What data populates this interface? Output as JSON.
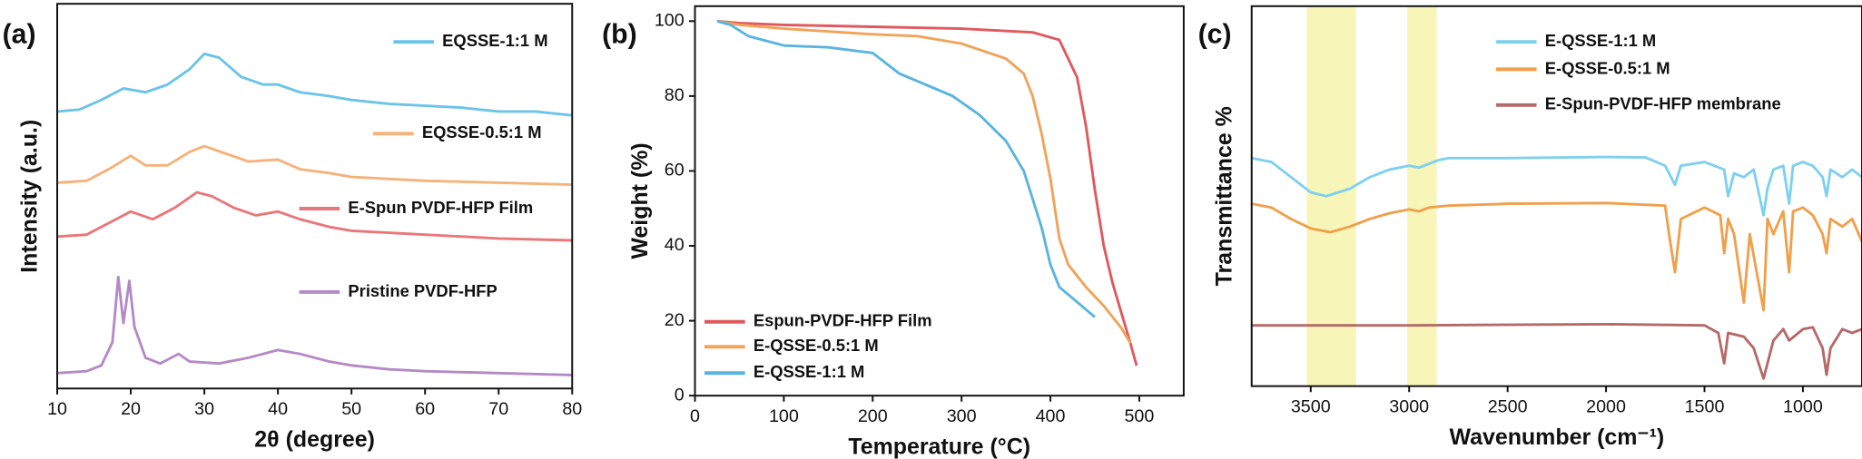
{
  "chart_data": [
    {
      "type": "line",
      "panel_label": "(a)",
      "x_label": "2θ (degree)",
      "y_label": "Intensity (a.u.)",
      "xlim": [
        10,
        80
      ],
      "xticks": [
        10,
        20,
        30,
        40,
        50,
        60,
        70,
        80
      ],
      "ylim": [
        0,
        100
      ],
      "legend": "inline",
      "series": [
        {
          "name": "EQSSE-1:1 M",
          "color": "#6bc4e8",
          "x": [
            10,
            13,
            16,
            19,
            22,
            25,
            28,
            30,
            32,
            35,
            38,
            40,
            43,
            47,
            50,
            55,
            60,
            65,
            70,
            75,
            80
          ],
          "values": [
            72,
            72.5,
            75,
            78,
            77,
            79,
            83,
            87,
            86,
            81,
            79,
            79,
            77,
            76,
            75,
            74,
            73.5,
            73,
            72,
            72,
            71
          ]
        },
        {
          "name": "EQSSE-0.5:1 M",
          "color": "#f5b27a",
          "x": [
            10,
            14,
            17,
            20,
            22,
            25,
            28,
            30,
            33,
            36,
            40,
            43,
            47,
            50,
            60,
            70,
            80
          ],
          "values": [
            53.5,
            54,
            57,
            60.5,
            58,
            58,
            61.5,
            63,
            61,
            59,
            59.5,
            57,
            56,
            55,
            54,
            53.5,
            53
          ]
        },
        {
          "name": "E-Spun PVDF-HFP Film",
          "color": "#e8777c",
          "x": [
            10,
            14,
            17,
            20,
            23,
            26,
            29,
            31,
            34,
            37,
            40,
            43,
            47,
            50,
            60,
            70,
            80
          ],
          "values": [
            39.5,
            40,
            43,
            46,
            44,
            47,
            51,
            50,
            47,
            45,
            46,
            44,
            42,
            41,
            40,
            39,
            38.5
          ]
        },
        {
          "name": "Pristine PVDF-HFP",
          "color": "#b48ac6",
          "x": [
            10,
            14,
            16,
            17.5,
            18.3,
            19,
            19.8,
            20.5,
            22,
            24,
            26.5,
            28,
            32,
            36,
            40,
            43,
            47,
            50,
            55,
            60,
            70,
            80
          ],
          "values": [
            4,
            4.5,
            6,
            12,
            29,
            17,
            28,
            16,
            8,
            6.5,
            9,
            7,
            6.5,
            8,
            10,
            9,
            7,
            6,
            5,
            4.5,
            4,
            3.5
          ]
        }
      ]
    },
    {
      "type": "line",
      "panel_label": "(b)",
      "x_label": "Temperature (°C)",
      "y_label": "Weight (%)",
      "xlim": [
        0,
        550
      ],
      "xticks": [
        0,
        100,
        200,
        300,
        400,
        500
      ],
      "ylim": [
        0,
        104
      ],
      "yticks": [
        0,
        20,
        40,
        60,
        80,
        100
      ],
      "legend": "lower left",
      "series": [
        {
          "name": "Espun-PVDF-HFP Film",
          "color": "#e0595e",
          "x": [
            25,
            50,
            100,
            200,
            300,
            380,
            410,
            430,
            440,
            450,
            460,
            470,
            480,
            490,
            497
          ],
          "values": [
            100,
            99.5,
            99,
            98.5,
            98,
            97,
            95,
            85,
            72,
            55,
            40,
            30,
            22,
            14,
            8
          ]
        },
        {
          "name": "E-QSSE-0.5:1 M",
          "color": "#f0a35a",
          "x": [
            25,
            50,
            100,
            200,
            250,
            300,
            350,
            370,
            380,
            390,
            400,
            410,
            420,
            440,
            460,
            480,
            490
          ],
          "values": [
            100,
            99,
            98,
            96.5,
            96,
            94,
            90,
            86,
            80,
            70,
            58,
            42,
            35,
            29,
            24,
            18,
            14
          ]
        },
        {
          "name": "E-QSSE-1:1 M",
          "color": "#5ab4e0",
          "x": [
            25,
            40,
            60,
            100,
            150,
            200,
            230,
            260,
            290,
            320,
            350,
            370,
            390,
            400,
            410,
            430,
            450
          ],
          "values": [
            100,
            99,
            96,
            93.5,
            93,
            91.5,
            86,
            83,
            80,
            75,
            68,
            60,
            45,
            35,
            29,
            25,
            21
          ]
        }
      ]
    },
    {
      "type": "line",
      "panel_label": "(c)",
      "x_label": "Wavenumber (cm⁻¹)",
      "y_label": "Transmittance %",
      "xlim": [
        3800,
        700
      ],
      "xticks": [
        3500,
        3000,
        2500,
        2000,
        1500,
        1000
      ],
      "ylim": [
        0,
        100
      ],
      "legend": "upper right",
      "bands": [
        [
          3520,
          3270
        ],
        [
          3010,
          2860
        ]
      ],
      "band_color": "#f6f2a6",
      "series": [
        {
          "name": "E-QSSE-1:1 M",
          "color": "#7fd0ee",
          "x": [
            3800,
            3700,
            3600,
            3500,
            3420,
            3300,
            3200,
            3100,
            3000,
            2950,
            2900,
            2850,
            2800,
            2500,
            2000,
            1800,
            1700,
            1650,
            1620,
            1500,
            1400,
            1380,
            1350,
            1300,
            1250,
            1200,
            1180,
            1150,
            1100,
            1070,
            1050,
            1000,
            950,
            900,
            880,
            860,
            800,
            750,
            700
          ],
          "values": [
            60,
            59,
            55,
            51,
            50,
            52,
            55,
            57,
            58,
            57.5,
            58.5,
            59.5,
            60,
            60,
            60.3,
            60.2,
            58,
            53,
            58,
            59,
            57,
            50,
            56,
            55,
            57,
            45,
            52,
            57,
            58,
            48,
            58,
            59,
            58,
            55,
            50,
            57,
            55,
            57,
            55
          ]
        },
        {
          "name": "E-QSSE-0.5:1 M",
          "color": "#f0a04b",
          "x": [
            3800,
            3700,
            3600,
            3500,
            3400,
            3300,
            3200,
            3100,
            3000,
            2950,
            2900,
            2800,
            2500,
            2000,
            1700,
            1680,
            1650,
            1620,
            1500,
            1420,
            1400,
            1380,
            1350,
            1300,
            1270,
            1200,
            1180,
            1150,
            1100,
            1070,
            1050,
            1000,
            950,
            900,
            880,
            860,
            800,
            750,
            700
          ],
          "values": [
            48,
            47,
            44,
            41.5,
            40.5,
            42,
            44,
            45.5,
            46.5,
            46,
            47,
            47.5,
            48,
            48.2,
            47.5,
            40,
            30,
            44,
            47,
            45,
            35,
            44,
            40,
            22,
            40,
            20,
            44,
            40,
            46,
            30,
            46,
            47,
            45,
            40,
            35,
            44,
            42,
            44,
            38
          ]
        },
        {
          "name": "E-Spun-PVDF-HFP membrane",
          "color": "#b56a6a",
          "x": [
            3800,
            3000,
            2000,
            1500,
            1430,
            1400,
            1380,
            1300,
            1250,
            1200,
            1180,
            1150,
            1100,
            1070,
            1000,
            950,
            900,
            880,
            860,
            800,
            750,
            700
          ],
          "values": [
            16,
            16,
            16.3,
            16,
            14,
            6,
            14,
            13,
            10,
            2,
            6,
            12,
            15,
            12,
            15,
            15.5,
            10,
            3,
            10,
            15,
            14,
            15
          ]
        }
      ]
    }
  ]
}
